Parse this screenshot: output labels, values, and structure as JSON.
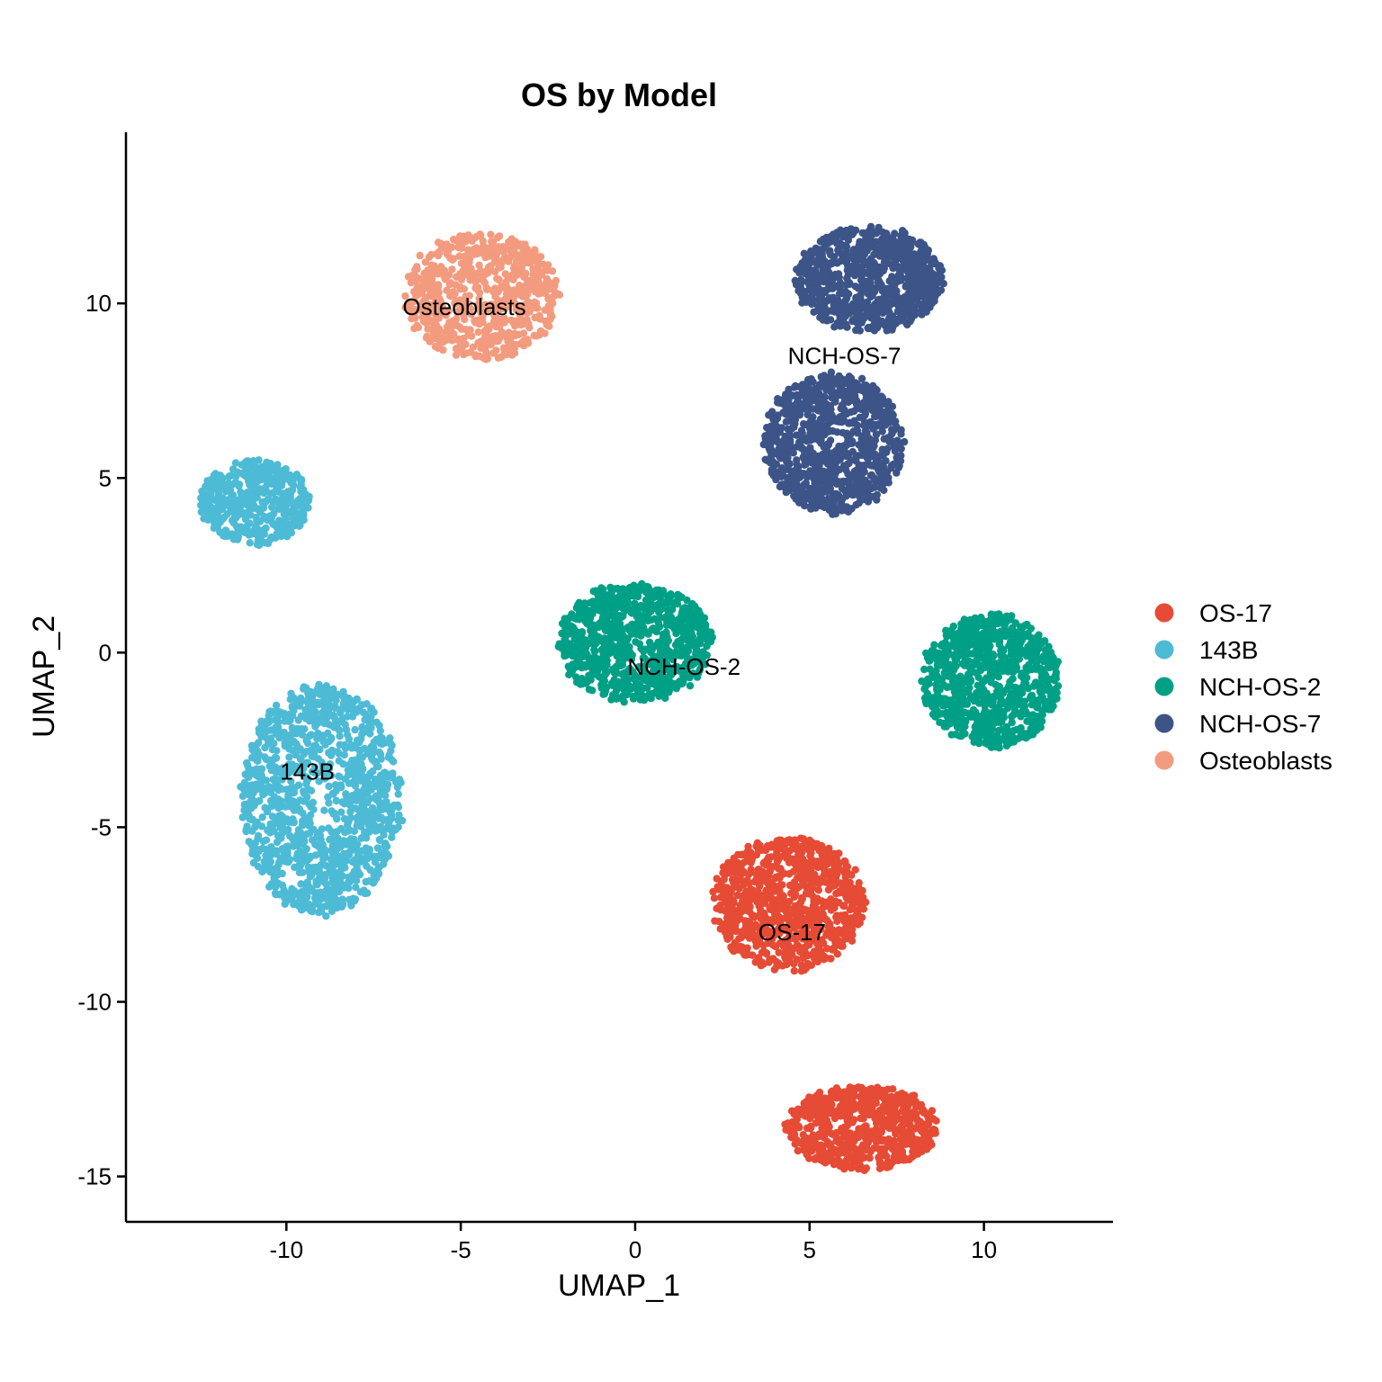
{
  "chart_data": {
    "type": "scatter",
    "title": "OS by Model",
    "xlabel": "UMAP_1",
    "ylabel": "UMAP_2",
    "xlim": [
      -14.6,
      13.7
    ],
    "ylim": [
      -16.3,
      14.9
    ],
    "xticks": [
      -10,
      -5,
      0,
      5,
      10
    ],
    "yticks": [
      -15,
      -10,
      -5,
      0,
      5,
      10
    ],
    "grid": false,
    "legend_position": "right",
    "series": [
      {
        "name": "OS-17",
        "color": "#E64B35",
        "clusters": [
          {
            "center": [
              4.4,
              -7.2
            ],
            "spread": [
              2.2,
              1.9
            ],
            "count": 900
          },
          {
            "center": [
              6.5,
              -13.6
            ],
            "spread": [
              2.2,
              1.2
            ],
            "count": 650
          }
        ]
      },
      {
        "name": "143B",
        "color": "#4DBBD5",
        "clusters": [
          {
            "center": [
              -10.9,
              4.3
            ],
            "spread": [
              1.6,
              1.2
            ],
            "count": 450
          },
          {
            "center": [
              -9.0,
              -4.2
            ],
            "spread": [
              2.3,
              3.3
            ],
            "count": 1200
          }
        ]
      },
      {
        "name": "NCH-OS-2",
        "color": "#00A087",
        "clusters": [
          {
            "center": [
              0.0,
              0.3
            ],
            "spread": [
              2.2,
              1.7
            ],
            "count": 850
          },
          {
            "center": [
              10.2,
              -0.8
            ],
            "spread": [
              2.0,
              1.9
            ],
            "count": 850
          }
        ]
      },
      {
        "name": "NCH-OS-7",
        "color": "#3C5488",
        "clusters": [
          {
            "center": [
              6.7,
              10.7
            ],
            "spread": [
              2.1,
              1.5
            ],
            "count": 800
          },
          {
            "center": [
              5.7,
              6.0
            ],
            "spread": [
              2.0,
              2.0
            ],
            "count": 900
          }
        ]
      },
      {
        "name": "Osteoblasts",
        "color": "#F39B7F",
        "clusters": [
          {
            "center": [
              -4.4,
              10.2
            ],
            "spread": [
              2.2,
              1.8
            ],
            "count": 700
          }
        ]
      }
    ],
    "cluster_labels": [
      {
        "text": "Osteoblasts",
        "x": -4.9,
        "y": 9.9
      },
      {
        "text": "NCH-OS-7",
        "x": 6.0,
        "y": 8.5
      },
      {
        "text": "NCH-OS-2",
        "x": 1.4,
        "y": -0.4
      },
      {
        "text": "143B",
        "x": -9.4,
        "y": -3.4
      },
      {
        "text": "OS-17",
        "x": 4.5,
        "y": -8.0
      }
    ]
  }
}
